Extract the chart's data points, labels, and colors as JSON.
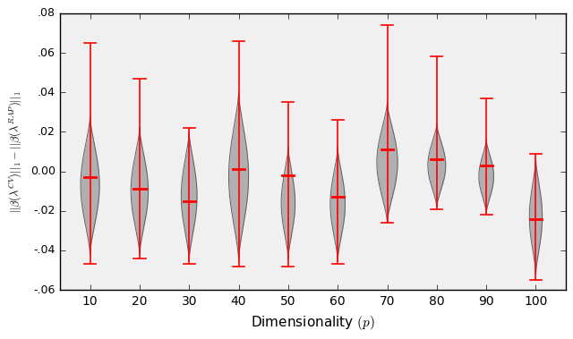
{
  "dimensionalities": [
    10,
    20,
    30,
    40,
    50,
    60,
    70,
    80,
    90,
    100
  ],
  "medians": [
    -0.003,
    -0.009,
    -0.015,
    0.001,
    -0.002,
    -0.013,
    0.011,
    0.006,
    0.003,
    -0.024
  ],
  "whisker_top": [
    0.065,
    0.047,
    0.022,
    0.066,
    0.035,
    0.026,
    0.074,
    0.058,
    0.037,
    0.009
  ],
  "whisker_bottom": [
    -0.047,
    -0.044,
    -0.047,
    -0.048,
    -0.048,
    -0.047,
    -0.026,
    -0.019,
    -0.022,
    -0.055
  ],
  "violin_top": [
    0.028,
    0.022,
    0.02,
    0.04,
    0.012,
    0.012,
    0.035,
    0.024,
    0.016,
    0.006
  ],
  "violin_bottom": [
    -0.042,
    -0.042,
    -0.045,
    -0.045,
    -0.044,
    -0.045,
    -0.026,
    -0.018,
    -0.021,
    -0.052
  ],
  "max_width": [
    0.38,
    0.35,
    0.32,
    0.4,
    0.28,
    0.3,
    0.42,
    0.36,
    0.3,
    0.26
  ],
  "ylim": [
    -0.06,
    0.08
  ],
  "yticks": [
    -0.06,
    -0.04,
    -0.02,
    0.0,
    0.02,
    0.04,
    0.06,
    0.08
  ],
  "xlabel": "Dimensionality $(p)$",
  "ylabel": "$||\\beta(\\lambda^{CV})||_1 - ||\\beta(\\lambda^{RAP})||_1$",
  "violin_color": "#b0b0b0",
  "violin_edge_color": "#606060",
  "whisker_color": "red",
  "median_color": "red",
  "background_color": "#f0f0f0",
  "fig_width": 6.4,
  "fig_height": 3.79,
  "dpi": 100
}
